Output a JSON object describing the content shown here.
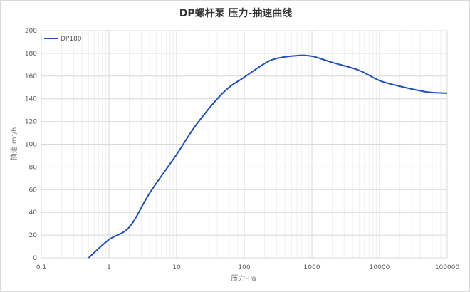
{
  "chart_data": {
    "type": "line",
    "title": "DP螺杆泵 压力-抽速曲线",
    "xlabel": "压力-Pa",
    "ylabel": "抽速 m³/h",
    "xscale": "log",
    "xlim": [
      0.1,
      100000
    ],
    "ylim": [
      0,
      200
    ],
    "xticks": [
      "0.1",
      "1",
      "10",
      "100",
      "1000",
      "10000",
      "100000"
    ],
    "yticks": [
      "0",
      "20",
      "40",
      "60",
      "80",
      "100",
      "120",
      "140",
      "160",
      "180",
      "200"
    ],
    "grid": true,
    "legend_position": "top-left",
    "series": [
      {
        "name": "DP180",
        "color": "#1f4fc1",
        "x": [
          0.5,
          1,
          2,
          4,
          10,
          20,
          50,
          100,
          200,
          300,
          600,
          1000,
          2000,
          5000,
          10000,
          20000,
          50000,
          100000
        ],
        "y": [
          0,
          16,
          27,
          57,
          91,
          118,
          146,
          159,
          171,
          175.5,
          178,
          177.5,
          172,
          165,
          156,
          151,
          146,
          145
        ]
      }
    ]
  }
}
